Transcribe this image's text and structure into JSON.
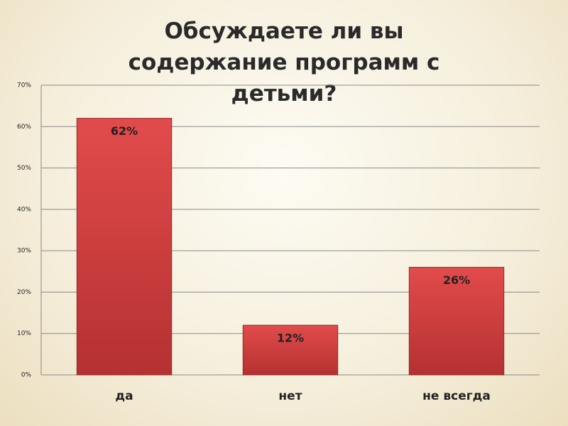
{
  "chart_data": {
    "type": "bar",
    "title": "Обсуждаете ли вы содержание программ с детьми?",
    "categories": [
      "да",
      "нет",
      "не всегда"
    ],
    "values": [
      62,
      12,
      26
    ],
    "value_labels": [
      "62%",
      "12%",
      "26%"
    ],
    "color": "#d94141",
    "ylim": [
      0,
      70
    ],
    "yticks": [
      {
        "value": 0,
        "label": "0%"
      },
      {
        "value": 10,
        "label": "10%"
      },
      {
        "value": 20,
        "label": "20%"
      },
      {
        "value": 30,
        "label": "30%"
      },
      {
        "value": 40,
        "label": "40%"
      },
      {
        "value": 50,
        "label": "50%"
      },
      {
        "value": 60,
        "label": "60%"
      },
      {
        "value": 70,
        "label": "70%"
      }
    ],
    "grid": true
  }
}
